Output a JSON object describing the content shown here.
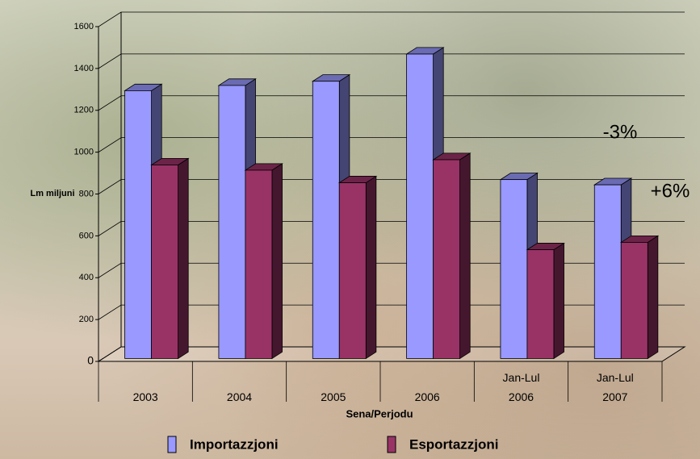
{
  "chart_data": {
    "type": "bar3d",
    "categories": [
      "2003",
      "2004",
      "2005",
      "2006",
      "Jan-Lul\n2006",
      "Jan-Lul\n2007"
    ],
    "series": [
      {
        "name": "Importazzjoni",
        "color": "#9999ff",
        "values": [
          1280,
          1305,
          1325,
          1455,
          855,
          830
        ]
      },
      {
        "name": "Esportazzjoni",
        "color": "#993366",
        "values": [
          925,
          900,
          840,
          950,
          520,
          555
        ]
      }
    ],
    "ylim": [
      0,
      1600
    ],
    "yticks": [
      0,
      200,
      400,
      600,
      800,
      1000,
      1200,
      1400,
      1600
    ],
    "ylabel": "Lm miljuni",
    "xlabel": "Sena/Perjodu",
    "grid": true,
    "annotations": [
      "-3%",
      "+6%"
    ]
  }
}
